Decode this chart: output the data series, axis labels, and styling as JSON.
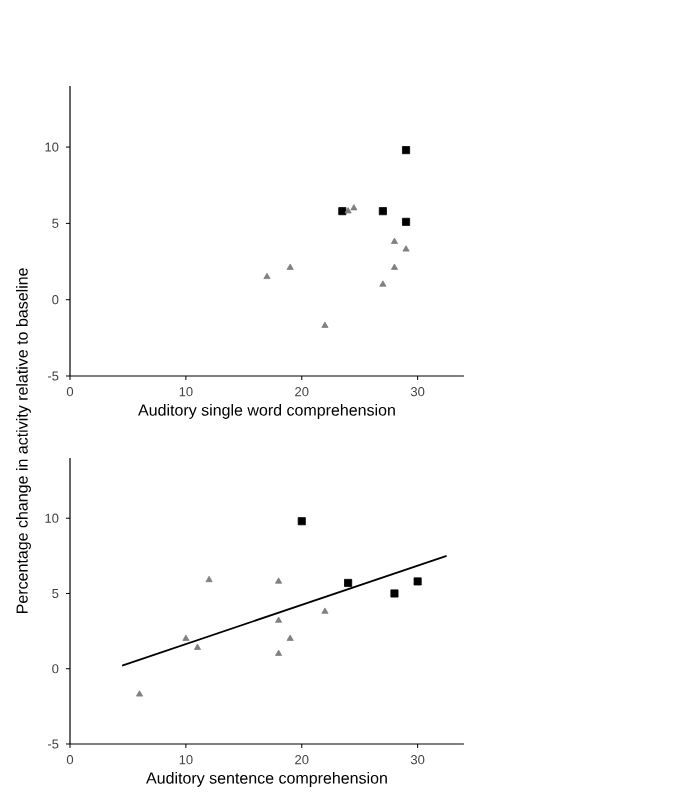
{
  "chart_data": [
    {
      "type": "scatter",
      "xlabel": "Auditory single word comprehension",
      "xlim": [
        0,
        34
      ],
      "ylim": [
        -5,
        14
      ],
      "xticks": [
        0,
        10,
        20,
        30
      ],
      "yticks": [
        -5,
        0,
        5,
        10
      ],
      "grid": false,
      "series": [
        {
          "color": "#000000",
          "marker": "square",
          "x": [
            23.5,
            27,
            29,
            29
          ],
          "values": [
            5.8,
            5.8,
            9.8,
            5.1
          ]
        },
        {
          "color": "#808080",
          "marker": "triangle",
          "x": [
            24,
            24.5,
            17,
            19,
            22,
            28,
            29,
            28,
            27
          ],
          "values": [
            5.8,
            6.0,
            1.5,
            2.1,
            -1.7,
            3.8,
            3.3,
            2.1,
            1.0
          ]
        }
      ]
    },
    {
      "type": "scatter",
      "xlabel": "Auditory sentence comprehension",
      "ylabel": "Percentage change in activity relative to baseline",
      "xlim": [
        0,
        34
      ],
      "ylim": [
        -5,
        14
      ],
      "xticks": [
        0,
        10,
        20,
        30
      ],
      "yticks": [
        -5,
        0,
        5,
        10
      ],
      "grid": false,
      "series": [
        {
          "color": "#000000",
          "marker": "square",
          "x": [
            20,
            24,
            28,
            30
          ],
          "values": [
            9.8,
            5.7,
            5.0,
            5.8
          ]
        },
        {
          "color": "#808080",
          "marker": "triangle",
          "x": [
            6,
            10,
            11,
            12,
            18,
            18,
            18,
            19,
            22
          ],
          "values": [
            -1.7,
            2.0,
            1.4,
            5.9,
            5.8,
            3.2,
            1.0,
            2.0,
            3.8
          ]
        },
        {
          "type": "line",
          "color": "#000000",
          "marker": "none",
          "x": [
            4.5,
            32.5
          ],
          "values": [
            0.2,
            7.5
          ]
        }
      ]
    }
  ]
}
